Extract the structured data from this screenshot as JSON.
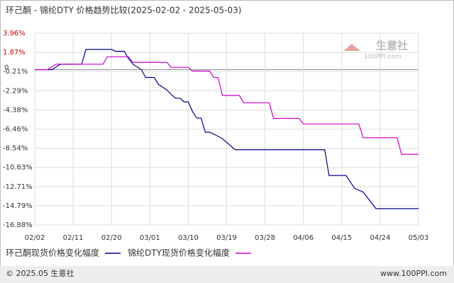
{
  "chart_data": {
    "type": "line",
    "title": "环己酮 - 锦纶DTY 价格趋势比较(2025-02-02 - 2025-05-03)",
    "watermark": "生意社",
    "watermark_sub": "100PPI.com",
    "footer_left": "© 2025.05 生意社",
    "footer_right": "www.100PPI.com",
    "xlim": [
      "02/02",
      "05/03"
    ],
    "xticks": [
      "02/02",
      "02/11",
      "02/20",
      "03/01",
      "03/10",
      "03/19",
      "03/28",
      "04/06",
      "04/15",
      "04/24",
      "05/03"
    ],
    "ylim": [
      -16.88,
      3.96
    ],
    "yticks": [
      {
        "value": 3.96,
        "label": "3.96%"
      },
      {
        "value": 1.87,
        "label": "1.87%"
      },
      0,
      {
        "value": -0.21,
        "label": "-0.21%"
      },
      {
        "value": -2.29,
        "label": "-2.29%"
      },
      {
        "value": -4.38,
        "label": "-4.38%"
      },
      {
        "value": -6.46,
        "label": "-6.46%"
      },
      {
        "value": -8.54,
        "label": "-8.54%"
      },
      {
        "value": -10.63,
        "label": "-10.63%"
      },
      {
        "value": -12.71,
        "label": "-12.71%"
      },
      {
        "value": -14.79,
        "label": "-14.79%"
      },
      {
        "value": -16.88,
        "label": "-16.88%"
      }
    ],
    "grid": true,
    "series": [
      {
        "name": "环己酮现货价格变化幅度",
        "color": "#00008b",
        "x": [
          "02/02",
          "02/06",
          "02/07",
          "02/08",
          "02/13",
          "02/14",
          "02/20",
          "02/21",
          "02/23",
          "02/24",
          "02/25",
          "02/27",
          "02/28",
          "03/02",
          "03/03",
          "03/05",
          "03/06",
          "03/07",
          "03/08",
          "03/09",
          "03/10",
          "03/11",
          "03/12",
          "03/13",
          "03/14",
          "03/15",
          "03/16",
          "03/18",
          "03/19",
          "03/21",
          "04/11",
          "04/12",
          "04/16",
          "04/17",
          "04/18",
          "04/20",
          "04/21",
          "04/23",
          "05/03"
        ],
        "values": [
          0,
          0,
          0.3,
          0.6,
          0.6,
          2.2,
          2.2,
          2.0,
          2.0,
          1.2,
          0.6,
          0,
          -0.85,
          -0.85,
          -1.6,
          -2.2,
          -2.7,
          -3.1,
          -3.1,
          -3.5,
          -3.5,
          -4.55,
          -5.25,
          -5.25,
          -6.8,
          -6.8,
          -7.0,
          -7.5,
          -7.9,
          -8.7,
          -8.7,
          -11.5,
          -11.5,
          -12.2,
          -12.9,
          -13.3,
          -13.9,
          -15.1,
          -15.1
        ]
      },
      {
        "name": "锦纶DTY现货价格变化幅度",
        "color": "#cc00cc",
        "x": [
          "02/02",
          "02/05",
          "02/06",
          "02/07",
          "02/18",
          "02/19",
          "02/24",
          "02/25",
          "03/05",
          "03/06",
          "03/10",
          "03/11",
          "03/15",
          "03/16",
          "03/17",
          "03/18",
          "03/22",
          "03/23",
          "03/29",
          "03/30",
          "04/05",
          "04/06",
          "04/19",
          "04/20",
          "04/28",
          "04/29",
          "05/03"
        ],
        "values": [
          0,
          0,
          0.3,
          0.6,
          0.6,
          1.4,
          1.4,
          0.8,
          0.8,
          0.25,
          0.25,
          -0.15,
          -0.15,
          -0.85,
          -0.85,
          -2.8,
          -2.8,
          -3.6,
          -3.6,
          -5.3,
          -5.3,
          -5.9,
          -5.9,
          -7.4,
          -7.4,
          -9.2,
          -9.2
        ]
      }
    ]
  }
}
